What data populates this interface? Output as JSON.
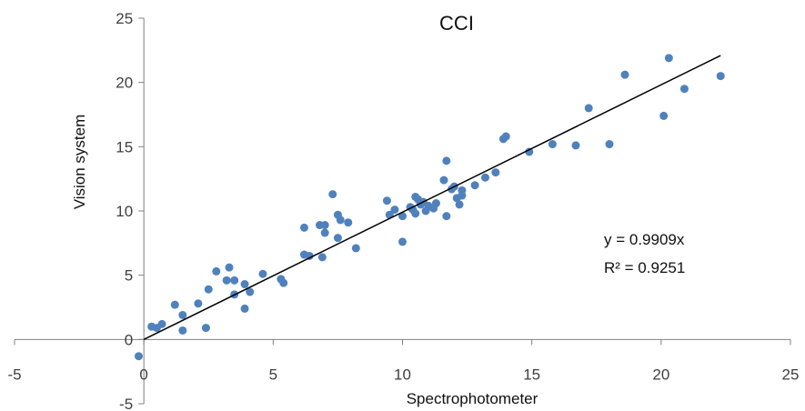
{
  "chart_data": {
    "type": "scatter",
    "title": "CCI",
    "xlabel": "Spectrophotometer",
    "ylabel": "Vision system",
    "xlim": [
      -5,
      25
    ],
    "ylim": [
      -5,
      25
    ],
    "x_ticks": [
      "-5",
      "0",
      "5",
      "10",
      "15",
      "20",
      "25"
    ],
    "y_ticks": [
      "-5",
      "0",
      "5",
      "10",
      "15",
      "20",
      "25"
    ],
    "grid": false,
    "legend": "none",
    "point_color": "#4f81bd",
    "line_color": "#000000",
    "trendline": {
      "slope": 0.9909,
      "x_range": [
        0,
        22.3
      ]
    },
    "annotations": [
      "y = 0.9909x",
      "R² = 0.9251"
    ],
    "points": [
      [
        -0.2,
        -1.3
      ],
      [
        0.3,
        1.0
      ],
      [
        0.5,
        0.9
      ],
      [
        0.7,
        1.2
      ],
      [
        1.2,
        2.7
      ],
      [
        1.5,
        1.9
      ],
      [
        1.5,
        0.7
      ],
      [
        2.1,
        2.8
      ],
      [
        2.4,
        0.9
      ],
      [
        2.5,
        3.9
      ],
      [
        2.8,
        5.3
      ],
      [
        3.2,
        4.6
      ],
      [
        3.3,
        5.6
      ],
      [
        3.5,
        4.6
      ],
      [
        3.5,
        3.5
      ],
      [
        3.9,
        4.3
      ],
      [
        3.9,
        2.4
      ],
      [
        4.1,
        3.7
      ],
      [
        4.6,
        5.1
      ],
      [
        5.3,
        4.7
      ],
      [
        5.4,
        4.4
      ],
      [
        6.2,
        8.7
      ],
      [
        6.2,
        6.6
      ],
      [
        6.4,
        6.5
      ],
      [
        6.8,
        8.9
      ],
      [
        6.9,
        6.4
      ],
      [
        7.0,
        8.9
      ],
      [
        7.0,
        8.3
      ],
      [
        7.3,
        11.3
      ],
      [
        7.5,
        9.7
      ],
      [
        7.5,
        7.9
      ],
      [
        7.6,
        9.3
      ],
      [
        7.9,
        9.1
      ],
      [
        8.2,
        7.1
      ],
      [
        9.4,
        10.8
      ],
      [
        9.5,
        9.7
      ],
      [
        9.7,
        10.1
      ],
      [
        10.0,
        9.6
      ],
      [
        10.0,
        7.6
      ],
      [
        10.3,
        10.3
      ],
      [
        10.4,
        10.1
      ],
      [
        10.5,
        11.1
      ],
      [
        10.5,
        9.8
      ],
      [
        10.6,
        10.9
      ],
      [
        10.7,
        10.5
      ],
      [
        10.8,
        10.7
      ],
      [
        10.9,
        10.0
      ],
      [
        11.0,
        10.4
      ],
      [
        11.2,
        10.2
      ],
      [
        11.3,
        10.6
      ],
      [
        11.6,
        12.4
      ],
      [
        11.7,
        13.9
      ],
      [
        11.7,
        9.6
      ],
      [
        11.9,
        11.7
      ],
      [
        12.0,
        11.9
      ],
      [
        12.1,
        11.0
      ],
      [
        12.2,
        10.5
      ],
      [
        12.3,
        11.6
      ],
      [
        12.3,
        11.2
      ],
      [
        12.8,
        12.0
      ],
      [
        13.2,
        12.6
      ],
      [
        13.6,
        13.0
      ],
      [
        13.9,
        15.6
      ],
      [
        14.0,
        15.8
      ],
      [
        14.9,
        14.6
      ],
      [
        15.8,
        15.2
      ],
      [
        16.7,
        15.1
      ],
      [
        17.2,
        18.0
      ],
      [
        18.0,
        15.2
      ],
      [
        18.6,
        20.6
      ],
      [
        20.1,
        17.4
      ],
      [
        20.3,
        21.9
      ],
      [
        20.9,
        19.5
      ],
      [
        22.3,
        20.5
      ]
    ]
  }
}
